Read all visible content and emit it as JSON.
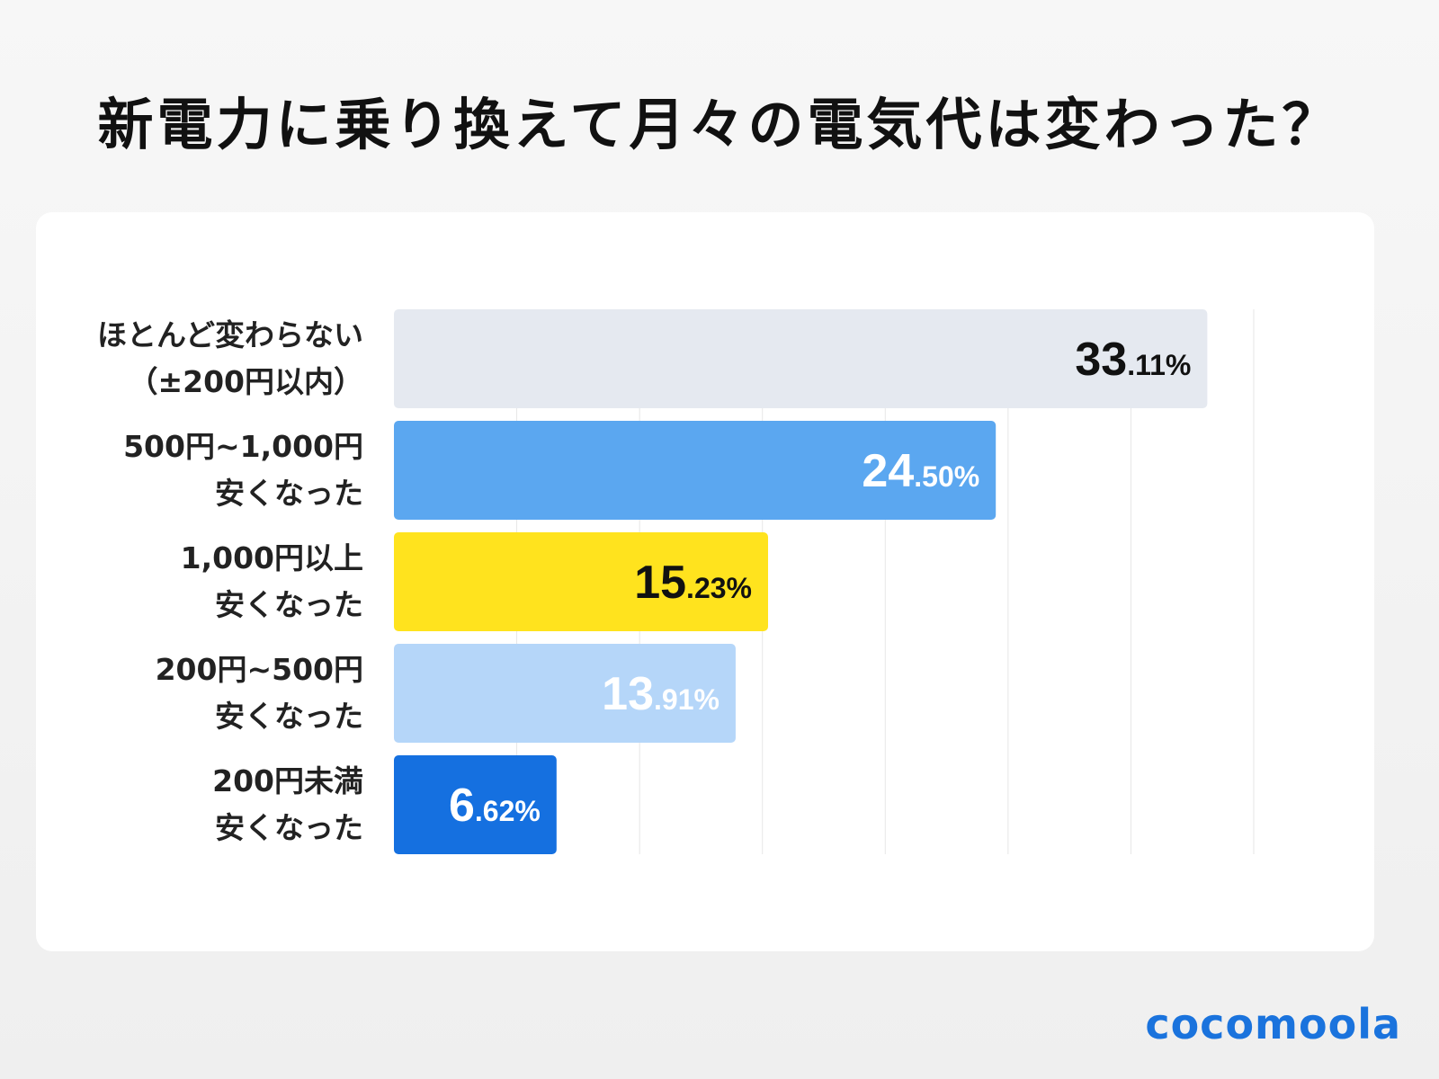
{
  "title": "新電力に乗り換えて月々の電気代は変わった？",
  "brand": "cocomoola",
  "chart_data": {
    "type": "bar",
    "orientation": "horizontal",
    "title": "新電力に乗り換えて月々の電気代は変わった？",
    "categories": [
      [
        "ほとんど変わらない",
        "（±200円以内）"
      ],
      [
        "500円~1,000円",
        "安くなった"
      ],
      [
        "1,000円以上",
        "安くなった"
      ],
      [
        "200円~500円",
        "安くなった"
      ],
      [
        "200円未満",
        "安くなった"
      ]
    ],
    "values": [
      33.11,
      24.5,
      15.23,
      13.91,
      6.62
    ],
    "labels": [
      "33.11%",
      "24.50%",
      "15.23%",
      "13.91%",
      "6.62%"
    ],
    "colors": [
      "#e5e9f0",
      "#5ba7f0",
      "#ffe31e",
      "#b5d6f9",
      "#1570e0"
    ],
    "label_colors": [
      "#111111",
      "#ffffff",
      "#111111",
      "#ffffff",
      "#ffffff"
    ],
    "xlim": [
      0,
      35
    ],
    "grid_step": 5,
    "grid": true,
    "xlabel": "",
    "ylabel": ""
  }
}
